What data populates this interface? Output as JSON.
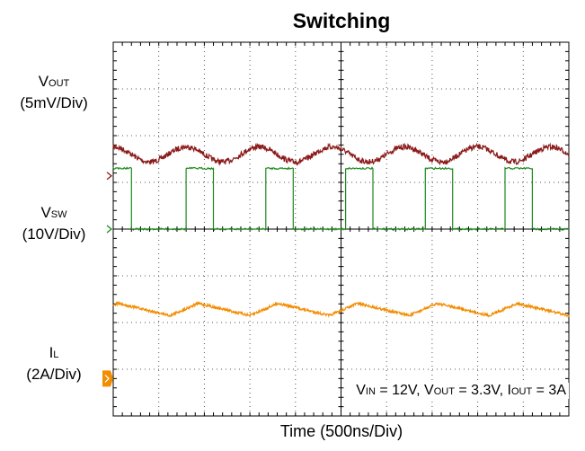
{
  "chart_data": {
    "type": "line",
    "title": "Switching",
    "xlabel": "Time  (500ns/Div)",
    "divisions": {
      "x": 10,
      "y": 8
    },
    "series": [
      {
        "name_main": "V",
        "name_sub": "OUT",
        "scale": "(5mV/Div)",
        "color": "#8b1a1a",
        "marker": "open-chevron",
        "waveform": "ripple",
        "ref_div": 2.86,
        "center_div": 2.4,
        "amplitude_div": 0.16,
        "period_div": 1.6
      },
      {
        "name_main": "V",
        "name_sub": "SW",
        "scale": "(10V/Div)",
        "color": "#1a8a1a",
        "marker": "open-chevron",
        "waveform": "square",
        "ref_div": 4.0,
        "low_div": 4.0,
        "high_div": 2.7,
        "pulses_div": [
          [
            0,
            0.4
          ],
          [
            1.6,
            2.2
          ],
          [
            3.35,
            3.95
          ],
          [
            5.1,
            5.7
          ],
          [
            6.85,
            7.45
          ],
          [
            8.6,
            9.2
          ]
        ]
      },
      {
        "name_main": "I",
        "name_sub": "L",
        "scale": "(2A/Div)",
        "color": "#f28c00",
        "marker": "filled-tag",
        "waveform": "triangle",
        "ref_div": 7.2,
        "center_div": 5.72,
        "amplitude_div": 0.13,
        "period_div": 1.75
      }
    ],
    "conditions": {
      "vin_main": "V",
      "vin_sub": "IN",
      "vin_value": " = 12V, ",
      "vout_main": "V",
      "vout_sub": "OUT",
      "vout_value": " = 3.3V, ",
      "iout_main": "I",
      "iout_sub": "OUT",
      "iout_value": " = 3A"
    }
  }
}
